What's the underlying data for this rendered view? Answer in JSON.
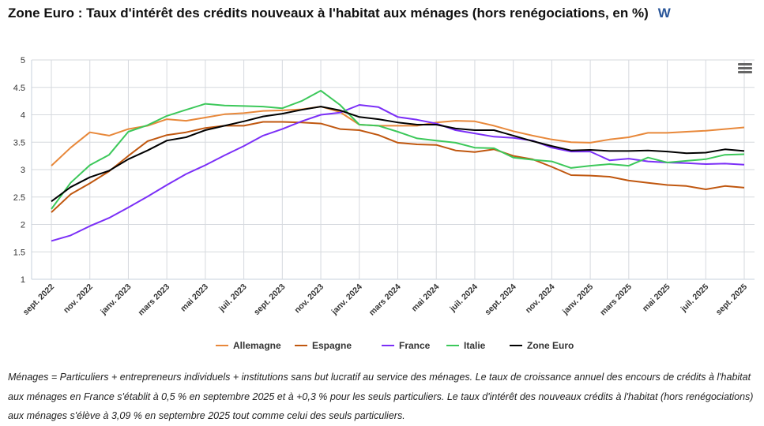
{
  "header": {
    "title": "Zone Euro : Taux d'intérêt des crédits nouveaux à l'habitat aux ménages (hors renégociations, en %)",
    "icon": "w-logo-icon"
  },
  "footnote": "Ménages = Particuliers + entrepreneurs individuels + institutions sans but lucratif au service des ménages. Le taux de croissance annuel des encours de crédits à l'habitat aux ménages en France s'établit à 0,5 % en septembre 2025 et à +0,3 % pour les seuls particuliers. Le taux d'intérêt des nouveaux crédits à l'habitat (hors renégociations) aux ménages s'élève à 3,09 % en septembre 2025 tout comme celui des seuls particuliers.",
  "chart_data": {
    "type": "line",
    "title": "Zone Euro : Taux d'intérêt des crédits nouveaux à l'habitat aux ménages (hors renégociations, en %)",
    "x_start": "2022-09",
    "x_end": "2025-09",
    "x_step": "month",
    "x_tick_labels": [
      "sept. 2022",
      "nov. 2022",
      "janv. 2023",
      "mars 2023",
      "mai 2023",
      "juil. 2023",
      "sept. 2023",
      "nov. 2023",
      "janv. 2024",
      "mars 2024",
      "mai 2024",
      "juil. 2024",
      "sept. 2024",
      "nov. 2024",
      "janv. 2025",
      "mars 2025",
      "mai 2025",
      "juil. 2025",
      "sept. 2025"
    ],
    "ylim": [
      1,
      5
    ],
    "y_ticks": [
      "1",
      "1.5",
      "2",
      "2.5",
      "3",
      "3.5",
      "4",
      "4.5",
      "5"
    ],
    "grid": true,
    "legend_position": "bottom",
    "series": [
      {
        "name": "Allemagne",
        "color": "#e8883a",
        "values": [
          3.07,
          3.4,
          3.68,
          3.62,
          3.74,
          3.8,
          3.92,
          3.89,
          3.95,
          4.01,
          4.03,
          4.07,
          4.08,
          4.1,
          4.15,
          4.05,
          3.82,
          3.8,
          3.8,
          3.8,
          3.86,
          3.89,
          3.88,
          3.8,
          3.7,
          3.62,
          3.55,
          3.5,
          3.49,
          3.55,
          3.59,
          3.67,
          3.67,
          3.69,
          3.71,
          3.74,
          3.77
        ]
      },
      {
        "name": "Espagne",
        "color": "#c0570f",
        "values": [
          2.22,
          2.55,
          2.75,
          2.97,
          3.25,
          3.52,
          3.63,
          3.68,
          3.76,
          3.8,
          3.8,
          3.87,
          3.87,
          3.86,
          3.84,
          3.74,
          3.72,
          3.63,
          3.49,
          3.46,
          3.45,
          3.35,
          3.32,
          3.37,
          3.25,
          3.19,
          3.05,
          2.9,
          2.89,
          2.87,
          2.8,
          2.76,
          2.72,
          2.7,
          2.64,
          2.7,
          2.67
        ]
      },
      {
        "name": "France",
        "color": "#7b2ff7",
        "values": [
          1.7,
          1.8,
          1.97,
          2.12,
          2.31,
          2.51,
          2.72,
          2.92,
          3.08,
          3.26,
          3.43,
          3.62,
          3.74,
          3.88,
          4.0,
          4.04,
          4.18,
          4.14,
          3.96,
          3.91,
          3.84,
          3.72,
          3.66,
          3.6,
          3.58,
          3.53,
          3.4,
          3.33,
          3.33,
          3.17,
          3.2,
          3.15,
          3.13,
          3.12,
          3.1,
          3.11,
          3.09
        ]
      },
      {
        "name": "Italie",
        "color": "#3cc85a",
        "values": [
          2.28,
          2.76,
          3.08,
          3.27,
          3.69,
          3.81,
          3.98,
          4.09,
          4.2,
          4.17,
          4.16,
          4.15,
          4.12,
          4.25,
          4.44,
          4.18,
          3.82,
          3.8,
          3.69,
          3.57,
          3.53,
          3.49,
          3.4,
          3.39,
          3.22,
          3.18,
          3.15,
          3.03,
          3.07,
          3.1,
          3.07,
          3.22,
          3.13,
          3.16,
          3.19,
          3.27,
          3.28
        ]
      },
      {
        "name": "Zone Euro",
        "color": "#000000",
        "values": [
          2.42,
          2.68,
          2.86,
          2.98,
          3.19,
          3.35,
          3.53,
          3.59,
          3.72,
          3.8,
          3.88,
          3.97,
          4.02,
          4.09,
          4.15,
          4.08,
          3.96,
          3.92,
          3.86,
          3.82,
          3.82,
          3.75,
          3.72,
          3.72,
          3.62,
          3.52,
          3.43,
          3.35,
          3.36,
          3.34,
          3.34,
          3.35,
          3.33,
          3.3,
          3.31,
          3.37,
          3.34
        ]
      }
    ]
  }
}
